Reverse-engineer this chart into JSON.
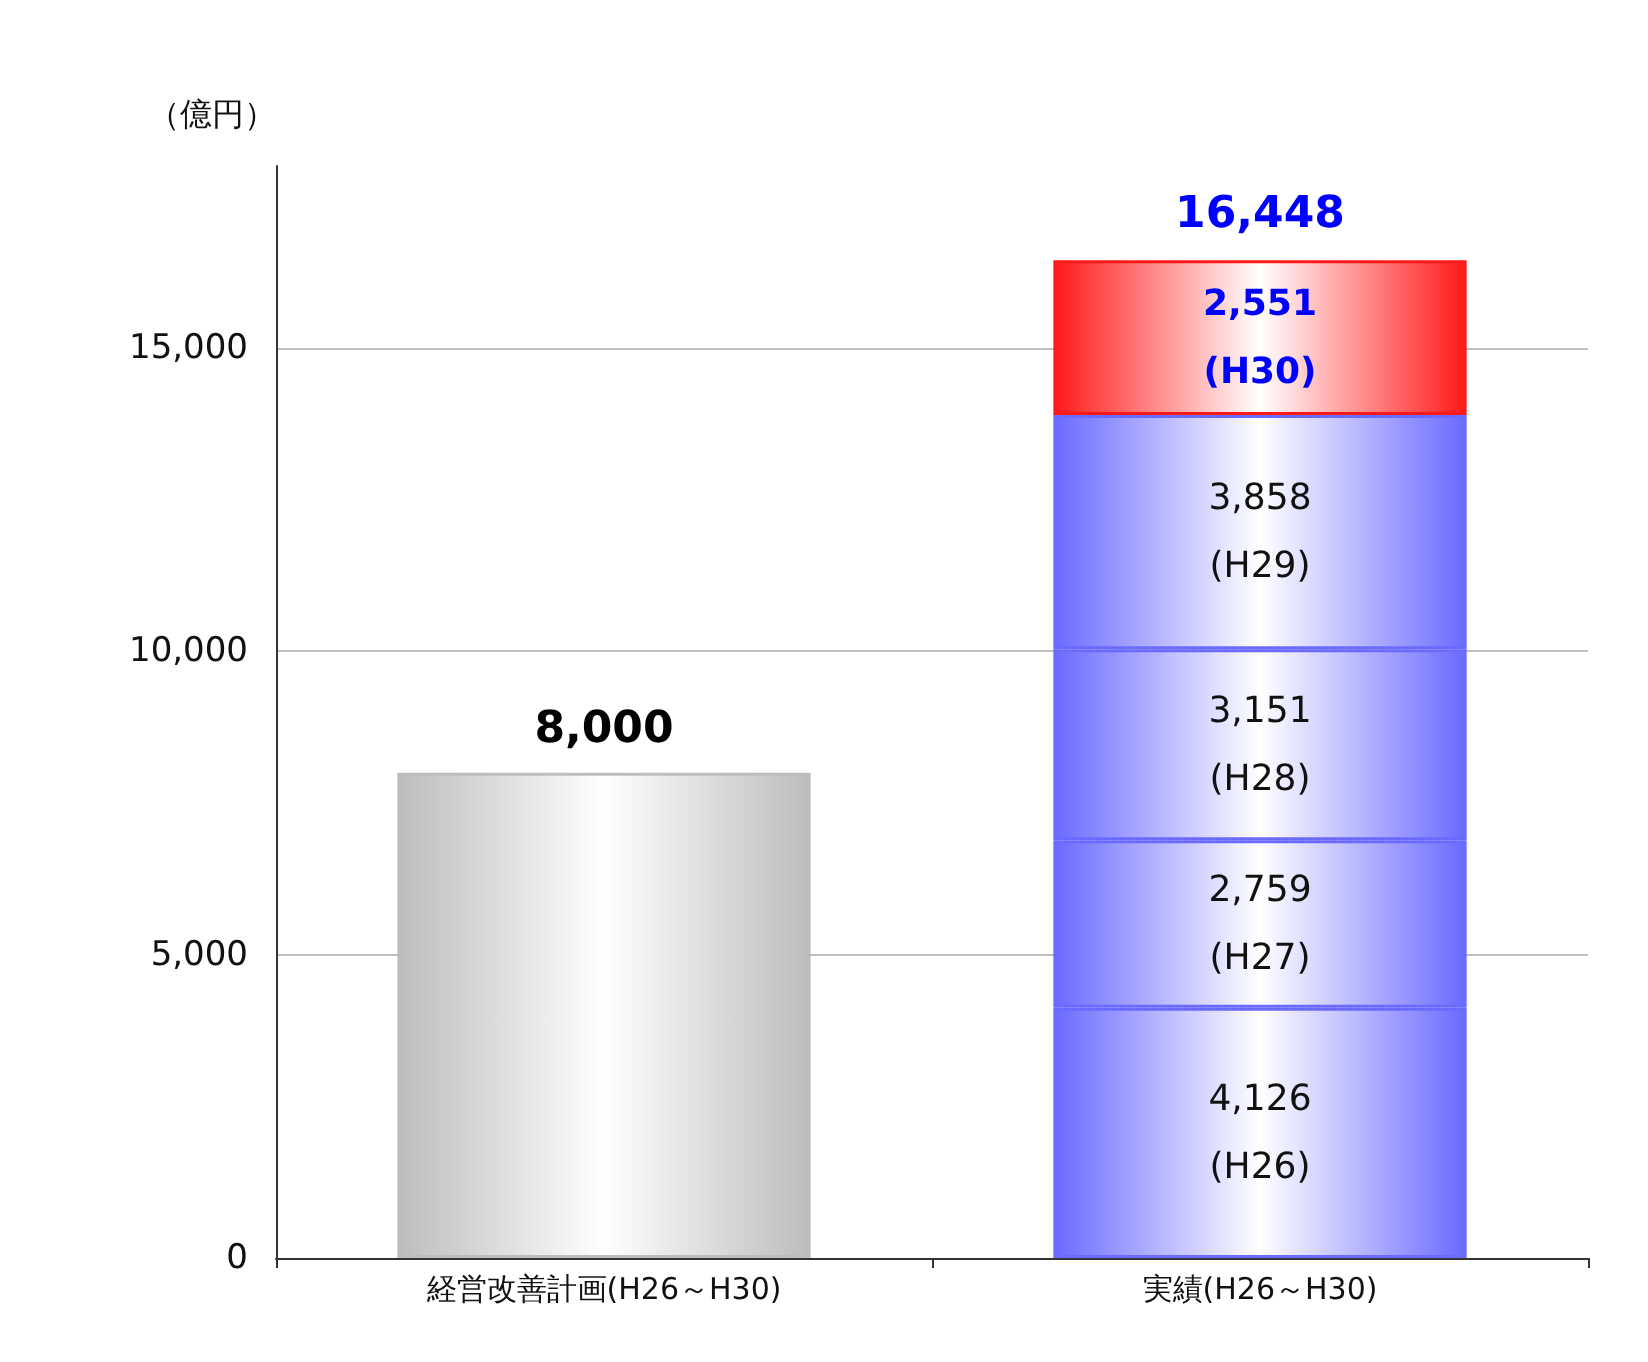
{
  "chart_data": {
    "type": "bar",
    "stacked": true,
    "ylabel": "（億円）",
    "categories": [
      "経営改善計画(H26～H30)",
      "実績(H26～H30)"
    ],
    "series": [
      {
        "color": "#bdbdbd",
        "values": [
          8000,
          null
        ],
        "value_labels": [
          "8,000",
          null
        ]
      },
      {
        "color": "#6a6aff",
        "values": [
          null,
          4126
        ],
        "value_labels": [
          null,
          "4,126\n(H26)"
        ]
      },
      {
        "color": "#6a6aff",
        "values": [
          null,
          2759
        ],
        "value_labels": [
          null,
          "2,759\n(H27)"
        ]
      },
      {
        "color": "#6a6aff",
        "values": [
          null,
          3151
        ],
        "value_labels": [
          null,
          "3,151\n(H28)"
        ]
      },
      {
        "color": "#6a6aff",
        "values": [
          null,
          3858
        ],
        "value_labels": [
          null,
          "3,858\n(H29)"
        ]
      },
      {
        "color": "#ff1a1a",
        "values": [
          null,
          2551
        ],
        "value_labels": [
          null,
          "2,551\n(H30)"
        ]
      }
    ],
    "totals": [
      null,
      "16,448"
    ],
    "ylim": [
      0,
      18000
    ],
    "yticks": [
      0,
      {
        "value": 5000,
        "label": "5,000"
      },
      {
        "value": 10000,
        "label": "10,000"
      },
      {
        "value": 15000,
        "label": "15,000"
      }
    ],
    "grid": "y"
  }
}
